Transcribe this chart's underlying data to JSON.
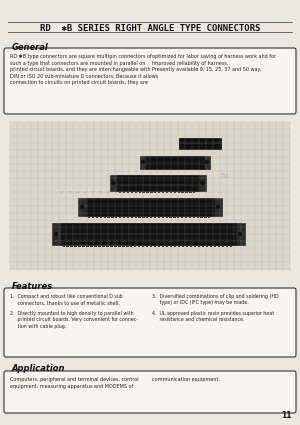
{
  "bg_color": "#ede8df",
  "page_num": "11",
  "title": "RD  ✱B SERIES RIGHT ANGLE TYPE CONNECTORS",
  "sections": {
    "general": {
      "heading": "General",
      "text_left": "RD ✱B type connectors are square multipin connectors of\nsuch a type that connectors are mounted in parallel on\nprinted circuit boards, and they are interchangeable with\nDIN or ISO 20 sub-miniature D connectors. Because it allows\nconnection to circuits on printed circuit boards, they are",
      "text_right": "optimized for labor saving of harness work and for\nimproved reliability of harness.\nPresently available 9, 15, 25, 37 and 50 way."
    },
    "features": {
      "heading": "Features",
      "items_left": [
        "1.  Compact and robust like conventional D sub\n     connectors, thanks to use of metallic shell.",
        "2.  Directly mounted to high density to parallel with\n     printed circuit boards. Very convenient for connec-\n     tion with cable plug."
      ],
      "items_right": [
        "3.  Diversified combinations of clip and soldering (HD\n     type) or IDC (IFC type) may be made.",
        "4.  UL approved plastic resin provides superior heat\n     resistance and chemical resistance."
      ]
    },
    "application": {
      "heading": "Application",
      "text_left": "Computers, peripheral and terminal devices, control\nequipment, measuring apparatus and MODEMS of",
      "text_right": "communication equipment."
    }
  },
  "line_color": "#666666",
  "box_bg": "#f8f4ee",
  "box_edge": "#333333",
  "heading_color": "#111111",
  "text_color": "#222222",
  "grid_bg": "#c8c2b4",
  "grid_line": "#a09880",
  "connector_dark": "#111111",
  "connector_mid": "#2a2828"
}
